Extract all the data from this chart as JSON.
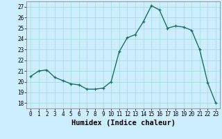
{
  "x": [
    0,
    1,
    2,
    3,
    4,
    5,
    6,
    7,
    8,
    9,
    10,
    11,
    12,
    13,
    14,
    15,
    16,
    17,
    18,
    19,
    20,
    21,
    22,
    23
  ],
  "y": [
    20.5,
    21.0,
    21.1,
    20.4,
    20.1,
    19.8,
    19.7,
    19.3,
    19.3,
    19.4,
    20.0,
    22.8,
    24.1,
    24.4,
    25.6,
    27.1,
    26.7,
    25.0,
    25.2,
    25.1,
    24.8,
    23.0,
    19.9,
    18.0
  ],
  "line_color": "#1a7060",
  "marker": "+",
  "marker_size": 3,
  "background_color": "#cceeff",
  "grid_color": "#aadddd",
  "xlabel": "Humidex (Indice chaleur)",
  "ylim": [
    17.5,
    27.5
  ],
  "yticks": [
    18,
    19,
    20,
    21,
    22,
    23,
    24,
    25,
    26,
    27
  ],
  "xticks": [
    0,
    1,
    2,
    3,
    4,
    5,
    6,
    7,
    8,
    9,
    10,
    11,
    12,
    13,
    14,
    15,
    16,
    17,
    18,
    19,
    20,
    21,
    22,
    23
  ],
  "tick_fontsize": 5.5,
  "xlabel_fontsize": 7.5,
  "line_width": 1.0
}
